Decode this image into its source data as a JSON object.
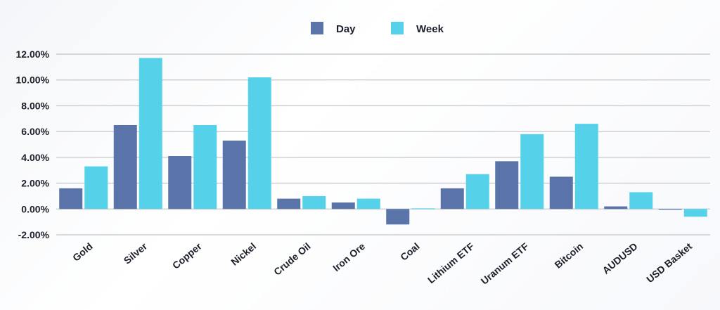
{
  "chart_data": {
    "type": "bar",
    "title": "",
    "xlabel": "",
    "ylabel": "",
    "ylim": [
      -2,
      12
    ],
    "yticks": [
      12,
      10,
      8,
      6,
      4,
      2,
      0,
      -2
    ],
    "ytick_labels": [
      "12.00%",
      "10.00%",
      "8.00%",
      "6.00%",
      "4.00%",
      "2.00%",
      "0.00%",
      "-2.00%"
    ],
    "grid": true,
    "legend_position": "top-center",
    "categories": [
      "Gold",
      "Silver",
      "Copper",
      "Nickel",
      "Crude Oil",
      "Iron Ore",
      "Coal",
      "Lithium ETF",
      "Uranum ETF",
      "Bitcoin",
      "AUDUSD",
      "USD Basket"
    ],
    "series": [
      {
        "name": "Day",
        "color": "#5a73a8",
        "values": [
          1.6,
          6.5,
          4.1,
          5.3,
          0.8,
          0.5,
          -1.2,
          1.6,
          3.7,
          2.5,
          0.2,
          0.0
        ]
      },
      {
        "name": "Week",
        "color": "#55d2ea",
        "values": [
          3.3,
          11.7,
          6.5,
          10.2,
          1.0,
          0.8,
          0.05,
          2.7,
          5.8,
          6.6,
          1.3,
          -0.6
        ]
      }
    ]
  }
}
